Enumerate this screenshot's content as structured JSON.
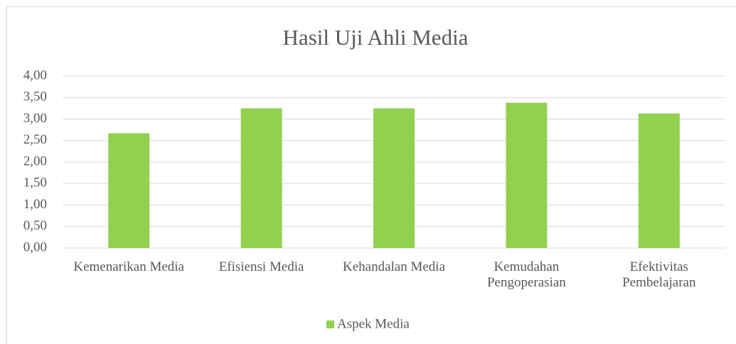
{
  "chart_data": {
    "type": "bar",
    "title": "Hasil Uji Ahli Media",
    "categories": [
      "Kemenarikan Media",
      "Efisiensi Media",
      "Kehandalan Media",
      "Kemudahan Pengoperasian",
      "Efektivitas Pembelajaran"
    ],
    "series": [
      {
        "name": "Aspek Media",
        "color": "#92d050",
        "values": [
          2.67,
          3.25,
          3.25,
          3.38,
          3.13
        ]
      }
    ],
    "ylim": [
      0,
      4
    ],
    "yticks": [
      {
        "value": 0,
        "label": "0,00"
      },
      {
        "value": 0.5,
        "label": "0,50"
      },
      {
        "value": 1,
        "label": "1,00"
      },
      {
        "value": 1.5,
        "label": "1,50"
      },
      {
        "value": 2,
        "label": "2,00"
      },
      {
        "value": 2.5,
        "label": "2,50"
      },
      {
        "value": 3,
        "label": "3,00"
      },
      {
        "value": 3.5,
        "label": "3,50"
      },
      {
        "value": 4,
        "label": "4,00"
      }
    ],
    "grid": true,
    "legend": "bottom"
  }
}
